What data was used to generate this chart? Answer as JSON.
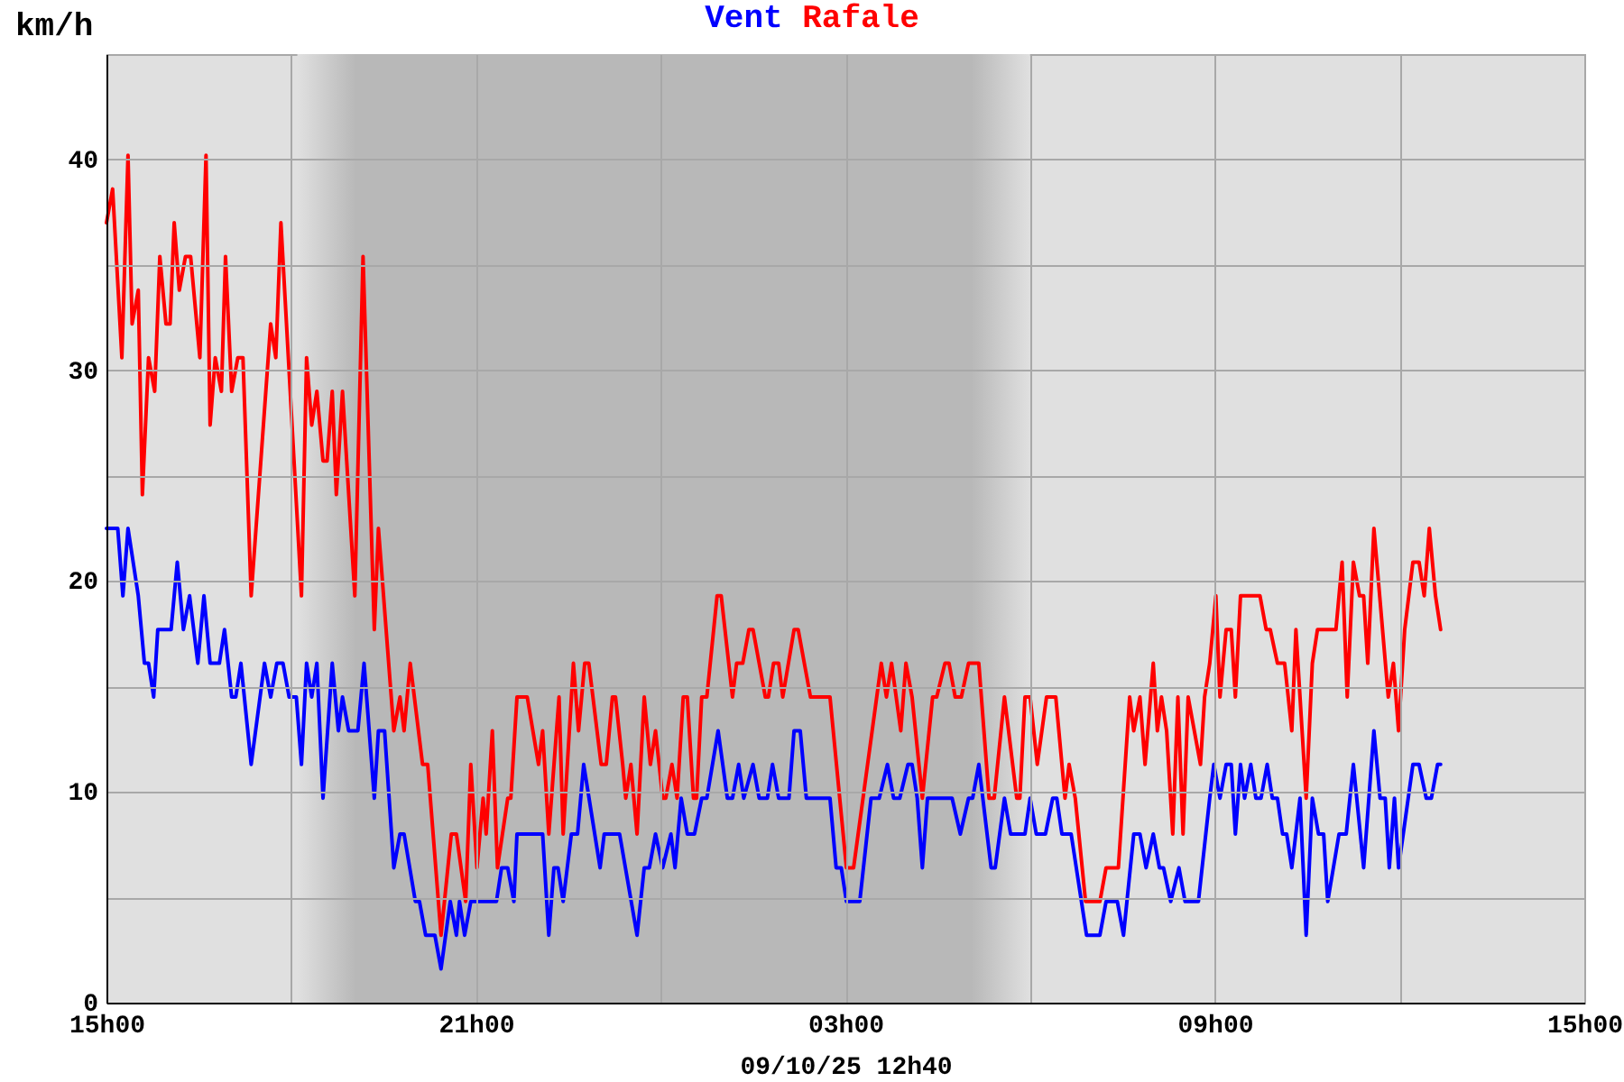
{
  "chart_data": {
    "type": "line",
    "legend": "top",
    "ylabel": "km/h",
    "xlabel": "09/10/25 12h40",
    "xlim": [
      "--10-08T15:00",
      "--10-09T15:00"
    ],
    "xticks": [
      {
        "value": "--10-08T15:00",
        "label": "15h00"
      },
      {
        "value": "--10-08T18:00",
        "label": null
      },
      {
        "value": "--10-08T21:00",
        "label": "21h00"
      },
      {
        "value": "--10-09T00:00",
        "label": null
      },
      {
        "value": "--10-09T03:00",
        "label": "03h00"
      },
      {
        "value": "--10-09T06:00",
        "label": null
      },
      {
        "value": "--10-09T09:00",
        "label": "09h00"
      },
      {
        "value": "--10-09T12:00",
        "label": null
      },
      {
        "value": "--10-09T15:00",
        "label": "15h00"
      }
    ],
    "ylim": [
      0,
      45
    ],
    "yticks": [
      0,
      {
        "value": 5,
        "label": null
      },
      10,
      {
        "value": 15,
        "label": null
      },
      20,
      {
        "value": 25,
        "label": null
      },
      30,
      {
        "value": 35,
        "label": null
      },
      40
    ],
    "grid": true,
    "bands": [
      {
        "axis": "x",
        "from": "--10-08T18:06",
        "to": "--10-09T06:00",
        "color": "#b8b8b8"
      }
    ],
    "series": [
      {
        "name": "Vent",
        "color": "#0000ff",
        "x": [
          "--10-08T15:00",
          "--10-08T15:11",
          "--10-08T15:16",
          "--10-08T15:21",
          "--10-08T15:31",
          "--10-08T15:37",
          "--10-08T15:41",
          "--10-08T15:46",
          "--10-08T15:50",
          "--10-08T16:03",
          "--10-08T16:09",
          "--10-08T16:15",
          "--10-08T16:21",
          "--10-08T16:29",
          "--10-08T16:35",
          "--10-08T16:41",
          "--10-08T16:50",
          "--10-08T16:55",
          "--10-08T17:02",
          "--10-08T17:06",
          "--10-08T17:11",
          "--10-08T17:21",
          "--10-08T17:34",
          "--10-08T17:40",
          "--10-08T17:46",
          "--10-08T17:52",
          "--10-08T17:58",
          "--10-08T18:05",
          "--10-08T18:10",
          "--10-08T18:15",
          "--10-08T18:20",
          "--10-08T18:25",
          "--10-08T18:31",
          "--10-08T18:40",
          "--10-08T18:46",
          "--10-08T18:50",
          "--10-08T18:56",
          "--10-08T19:05",
          "--10-08T19:11",
          "--10-08T19:21",
          "--10-08T19:25",
          "--10-08T19:31",
          "--10-08T19:40",
          "--10-08T19:46",
          "--10-08T19:50",
          "--10-08T20:01",
          "--10-08T20:05",
          "--10-08T20:11",
          "--10-08T20:20",
          "--10-08T20:26",
          "--10-08T20:35",
          "--10-08T20:41",
          "--10-08T20:44",
          "--10-08T20:49",
          "--10-08T20:55",
          "--10-08T21:20",
          "--10-08T21:25",
          "--10-08T21:31",
          "--10-08T21:37",
          "--10-08T21:40",
          "--10-08T22:05",
          "--10-08T22:11",
          "--10-08T22:16",
          "--10-08T22:20",
          "--10-08T22:25",
          "--10-08T22:33",
          "--10-08T22:39",
          "--10-08T22:45",
          "--10-08T23:01",
          "--10-08T23:05",
          "--10-08T23:20",
          "--10-08T23:37",
          "--10-08T23:44",
          "--10-08T23:49",
          "--10-08T23:55",
          "--10-09T00:02",
          "--10-09T00:10",
          "--10-09T00:14",
          "--10-09T00:20",
          "--10-09T00:26",
          "--10-09T00:33",
          "--10-09T00:40",
          "--10-09T00:45",
          "--10-09T00:56",
          "--10-09T01:05",
          "--10-09T01:10",
          "--10-09T01:16",
          "--10-09T01:21",
          "--10-09T01:30",
          "--10-09T01:36",
          "--10-09T01:44",
          "--10-09T01:49",
          "--10-09T01:55",
          "--10-09T02:05",
          "--10-09T02:10",
          "--10-09T02:16",
          "--10-09T02:22",
          "--10-09T02:45",
          "--10-09T02:51",
          "--10-09T02:56",
          "--10-09T03:01",
          "--10-09T03:14",
          "--10-09T03:25",
          "--10-09T03:33",
          "--10-09T03:41",
          "--10-09T03:47",
          "--10-09T03:53",
          "--10-09T04:01",
          "--10-09T04:05",
          "--10-09T04:10",
          "--10-09T04:15",
          "--10-09T04:20",
          "--10-09T04:44",
          "--10-09T04:52",
          "--10-09T05:00",
          "--10-09T05:04",
          "--10-09T05:10",
          "--10-09T05:22",
          "--10-09T05:26",
          "--10-09T05:35",
          "--10-09T05:41",
          "--10-09T05:55",
          "--10-09T06:00",
          "--10-09T06:06",
          "--10-09T06:15",
          "--10-09T06:22",
          "--10-09T06:26",
          "--10-09T06:31",
          "--10-09T06:40",
          "--10-09T06:55",
          "--10-09T07:08",
          "--10-09T07:14",
          "--10-09T07:25",
          "--10-09T07:31",
          "--10-09T07:41",
          "--10-09T07:47",
          "--10-09T07:53",
          "--10-09T08:00",
          "--10-09T08:06",
          "--10-09T08:10",
          "--10-09T08:17",
          "--10-09T08:25",
          "--10-09T08:31",
          "--10-09T08:44",
          "--10-09T08:55",
          "--10-09T08:59",
          "--10-09T09:05",
          "--10-09T09:11",
          "--10-09T09:16",
          "--10-09T09:20",
          "--10-09T09:25",
          "--10-09T09:29",
          "--10-09T09:35",
          "--10-09T09:40",
          "--10-09T09:45",
          "--10-09T09:51",
          "--10-09T09:56",
          "--10-09T10:01",
          "--10-09T10:06",
          "--10-09T10:10",
          "--10-09T10:15",
          "--10-09T10:23",
          "--10-09T10:29",
          "--10-09T10:35",
          "--10-09T10:41",
          "--10-09T10:46",
          "--10-09T10:50",
          "--10-09T11:01",
          "--10-09T11:08",
          "--10-09T11:15",
          "--10-09T11:25",
          "--10-09T11:35",
          "--10-09T11:41",
          "--10-09T11:46",
          "--10-09T11:50",
          "--10-09T11:55",
          "--10-09T11:59",
          "--10-09T12:13",
          "--10-09T12:19",
          "--10-09T12:26",
          "--10-09T12:31",
          "--10-09T12:37",
          "--10-09T12:40"
        ],
        "values": [
          22.5,
          22.5,
          19.3,
          22.5,
          19.3,
          16.1,
          16.1,
          14.5,
          17.7,
          17.7,
          20.9,
          17.7,
          19.3,
          16.1,
          19.3,
          16.1,
          16.1,
          17.7,
          14.5,
          14.5,
          16.1,
          11.3,
          16.1,
          14.5,
          16.1,
          16.1,
          14.5,
          14.5,
          11.3,
          16.1,
          14.5,
          16.1,
          9.7,
          16.1,
          12.9,
          14.5,
          12.9,
          12.9,
          16.1,
          9.7,
          12.9,
          12.9,
          6.4,
          8.0,
          8.0,
          4.8,
          4.8,
          3.2,
          3.2,
          1.6,
          4.8,
          3.2,
          4.8,
          3.2,
          4.8,
          4.8,
          6.4,
          6.4,
          4.8,
          8.0,
          8.0,
          3.2,
          6.4,
          6.4,
          4.8,
          8.0,
          8.0,
          11.3,
          6.4,
          8.0,
          8.0,
          3.2,
          6.4,
          6.4,
          8.0,
          6.4,
          8.0,
          6.4,
          9.7,
          8.0,
          8.0,
          9.7,
          9.7,
          12.9,
          9.7,
          9.7,
          11.3,
          9.7,
          11.3,
          9.7,
          9.7,
          11.3,
          9.7,
          9.7,
          12.9,
          12.9,
          9.7,
          9.7,
          6.4,
          6.4,
          4.8,
          4.8,
          9.7,
          9.7,
          11.3,
          9.7,
          9.7,
          11.3,
          11.3,
          9.7,
          6.4,
          9.7,
          9.7,
          8.0,
          9.7,
          9.7,
          11.3,
          6.4,
          6.4,
          9.7,
          8.0,
          8.0,
          9.7,
          8.0,
          8.0,
          9.7,
          9.7,
          8.0,
          8.0,
          3.2,
          3.2,
          4.8,
          4.8,
          3.2,
          8.0,
          8.0,
          6.4,
          8.0,
          6.4,
          6.4,
          4.8,
          6.4,
          4.8,
          4.8,
          9.7,
          11.3,
          9.7,
          11.3,
          11.3,
          8.0,
          11.3,
          9.7,
          11.3,
          9.7,
          9.7,
          11.3,
          9.7,
          9.7,
          8.0,
          8.0,
          6.4,
          9.7,
          3.2,
          9.7,
          8.0,
          8.0,
          4.8,
          8.0,
          8.0,
          11.3,
          6.4,
          12.9,
          9.7,
          9.7,
          6.4,
          9.7,
          6.4,
          11.3,
          11.3,
          9.7,
          9.7,
          11.3,
          11.3
        ]
      },
      {
        "name": "Rafale",
        "color": "#ff0000",
        "x": [
          "--10-08T15:00",
          "--10-08T15:06",
          "--10-08T15:15",
          "--10-08T15:21",
          "--10-08T15:25",
          "--10-08T15:31",
          "--10-08T15:35",
          "--10-08T15:41",
          "--10-08T15:47",
          "--10-08T15:52",
          "--10-08T15:58",
          "--10-08T16:02",
          "--10-08T16:06",
          "--10-08T16:11",
          "--10-08T16:17",
          "--10-08T16:22",
          "--10-08T16:31",
          "--10-08T16:37",
          "--10-08T16:41",
          "--10-08T16:46",
          "--10-08T16:52",
          "--10-08T16:56",
          "--10-08T17:02",
          "--10-08T17:08",
          "--10-08T17:13",
          "--10-08T17:21",
          "--10-08T17:40",
          "--10-08T17:45",
          "--10-08T17:50",
          "--10-08T18:10",
          "--10-08T18:15",
          "--10-08T18:20",
          "--10-08T18:25",
          "--10-08T18:31",
          "--10-08T18:35",
          "--10-08T18:40",
          "--10-08T18:44",
          "--10-08T18:50",
          "--10-08T19:02",
          "--10-08T19:10",
          "--10-08T19:21",
          "--10-08T19:25",
          "--10-08T19:40",
          "--10-08T19:46",
          "--10-08T19:50",
          "--10-08T19:56",
          "--10-08T20:04",
          "--10-08T20:08",
          "--10-08T20:13",
          "--10-08T20:26",
          "--10-08T20:36",
          "--10-08T20:41",
          "--10-08T20:50",
          "--10-08T20:55",
          "--10-08T21:01",
          "--10-08T21:07",
          "--10-08T21:10",
          "--10-08T21:16",
          "--10-08T21:21",
          "--10-08T21:31",
          "--10-08T21:34",
          "--10-08T21:40",
          "--10-08T21:50",
          "--10-08T22:01",
          "--10-08T22:05",
          "--10-08T22:11",
          "--10-08T22:21",
          "--10-08T22:25",
          "--10-08T22:35",
          "--10-08T22:40",
          "--10-08T22:46",
          "--10-08T22:50",
          "--10-08T23:02",
          "--10-08T23:07",
          "--10-08T23:13",
          "--10-08T23:16",
          "--10-08T23:23",
          "--10-08T23:26",
          "--10-08T23:31",
          "--10-08T23:37",
          "--10-08T23:44",
          "--10-08T23:50",
          "--10-08T23:55",
          "--10-09T00:02",
          "--10-09T00:05",
          "--10-09T00:11",
          "--10-09T00:16",
          "--10-09T00:22",
          "--10-09T00:26",
          "--10-09T00:32",
          "--10-09T00:35",
          "--10-09T00:40",
          "--10-09T00:45",
          "--10-09T00:55",
          "--10-09T00:59",
          "--10-09T01:10",
          "--10-09T01:14",
          "--10-09T01:20",
          "--10-09T01:26",
          "--10-09T01:30",
          "--10-09T01:42",
          "--10-09T01:45",
          "--10-09T01:50",
          "--10-09T01:55",
          "--10-09T01:59",
          "--10-09T02:10",
          "--10-09T02:14",
          "--10-09T02:26",
          "--10-09T02:45",
          "--10-09T03:01",
          "--10-09T03:08",
          "--10-09T03:35",
          "--10-09T03:40",
          "--10-09T03:45",
          "--10-09T03:54",
          "--10-09T03:59",
          "--10-09T04:05",
          "--10-09T04:15",
          "--10-09T04:25",
          "--10-09T04:29",
          "--10-09T04:37",
          "--10-09T04:41",
          "--10-09T04:47",
          "--10-09T04:53",
          "--10-09T05:00",
          "--10-09T05:10",
          "--10-09T05:20",
          "--10-09T05:25",
          "--10-09T05:35",
          "--10-09T05:47",
          "--10-09T05:50",
          "--10-09T05:55",
          "--10-09T06:00",
          "--10-09T06:07",
          "--10-09T06:16",
          "--10-09T06:25",
          "--10-09T06:34",
          "--10-09T06:38",
          "--10-09T06:44",
          "--10-09T06:54",
          "--10-09T07:08",
          "--10-09T07:14",
          "--10-09T07:26",
          "--10-09T07:37",
          "--10-09T07:41",
          "--10-09T07:47",
          "--10-09T07:52",
          "--10-09T08:00",
          "--10-09T08:04",
          "--10-09T08:08",
          "--10-09T08:13",
          "--10-09T08:19",
          "--10-09T08:24",
          "--10-09T08:29",
          "--10-09T08:34",
          "--10-09T08:46",
          "--10-09T08:50",
          "--10-09T08:55",
          "--10-09T09:01",
          "--10-09T09:05",
          "--10-09T09:11",
          "--10-09T09:16",
          "--10-09T09:20",
          "--10-09T09:25",
          "--10-09T09:44",
          "--10-09T09:50",
          "--10-09T09:54",
          "--10-09T10:01",
          "--10-09T10:08",
          "--10-09T10:15",
          "--10-09T10:19",
          "--10-09T10:29",
          "--10-09T10:35",
          "--10-09T10:40",
          "--10-09T10:58",
          "--10-09T11:04",
          "--10-09T11:09",
          "--10-09T11:15",
          "--10-09T11:21",
          "--10-09T11:25",
          "--10-09T11:29",
          "--10-09T11:35",
          "--10-09T11:49",
          "--10-09T11:54",
          "--10-09T11:59",
          "--10-09T12:05",
          "--10-09T12:13",
          "--10-09T12:19",
          "--10-09T12:24",
          "--10-09T12:29",
          "--10-09T12:35",
          "--10-09T12:40"
        ],
        "values": [
          37.0,
          38.6,
          30.6,
          40.2,
          32.2,
          33.8,
          24.1,
          30.6,
          29.0,
          35.4,
          32.2,
          32.2,
          37.0,
          33.8,
          35.4,
          35.4,
          30.6,
          40.2,
          27.4,
          30.6,
          29.0,
          35.4,
          29.0,
          30.6,
          30.6,
          19.3,
          32.2,
          30.6,
          37.0,
          19.3,
          30.6,
          27.4,
          29.0,
          25.7,
          25.7,
          29.0,
          24.1,
          29.0,
          19.3,
          35.4,
          17.7,
          22.5,
          12.9,
          14.5,
          12.9,
          16.1,
          12.9,
          11.3,
          11.3,
          3.2,
          8.0,
          8.0,
          4.8,
          11.3,
          6.4,
          9.7,
          8.0,
          12.9,
          6.4,
          9.7,
          9.7,
          14.5,
          14.5,
          11.3,
          12.9,
          8.0,
          14.5,
          8.0,
          16.1,
          12.9,
          16.1,
          16.1,
          11.3,
          11.3,
          14.5,
          14.5,
          11.3,
          9.7,
          11.3,
          8.0,
          14.5,
          11.3,
          12.9,
          9.7,
          9.7,
          11.3,
          9.7,
          14.5,
          14.5,
          9.7,
          9.7,
          14.5,
          14.5,
          19.3,
          19.3,
          14.5,
          16.1,
          16.1,
          17.7,
          17.7,
          14.5,
          14.5,
          16.1,
          16.1,
          14.5,
          17.7,
          17.7,
          14.5,
          14.5,
          6.4,
          6.4,
          16.1,
          14.5,
          16.1,
          12.9,
          16.1,
          14.5,
          9.7,
          14.5,
          14.5,
          16.1,
          16.1,
          14.5,
          14.5,
          16.1,
          16.1,
          9.7,
          9.7,
          14.5,
          9.7,
          9.7,
          14.5,
          14.5,
          11.3,
          14.5,
          14.5,
          9.7,
          11.3,
          9.7,
          4.8,
          4.8,
          6.4,
          6.4,
          14.5,
          12.9,
          14.5,
          11.3,
          16.1,
          12.9,
          14.5,
          12.9,
          8.0,
          14.5,
          8.0,
          14.5,
          11.3,
          14.5,
          16.1,
          19.3,
          14.5,
          17.7,
          17.7,
          14.5,
          19.3,
          19.3,
          17.7,
          17.7,
          16.1,
          16.1,
          12.9,
          17.7,
          9.7,
          16.1,
          17.7,
          17.7,
          20.9,
          14.5,
          20.9,
          19.3,
          19.3,
          16.1,
          22.5,
          14.5,
          16.1,
          12.9,
          17.7,
          20.9,
          20.9,
          19.3,
          22.5,
          19.3,
          17.7
        ]
      }
    ]
  }
}
